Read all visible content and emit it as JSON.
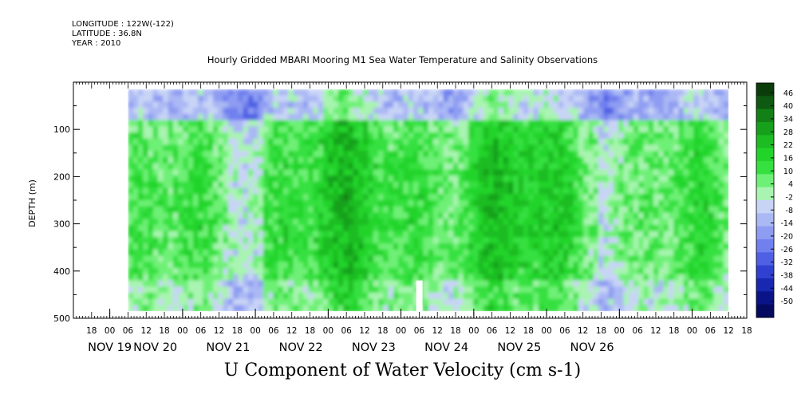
{
  "header": {
    "longitude": "LONGITUDE : 122W(-122)",
    "latitude": "LATITUDE : 36.8N",
    "year": "YEAR : 2010"
  },
  "chart_data": {
    "type": "heatmap",
    "title": "Hourly Gridded MBARI Mooring M1 Sea Water Temperature and Salinity Observations",
    "bottom_title": "U Component of Water Velocity (cm s-1)",
    "ylabel": "DEPTH (m)",
    "ylim": [
      500,
      0
    ],
    "yticks": [
      100,
      200,
      300,
      400,
      500
    ],
    "x_hour_ticks": [
      "18",
      "00",
      "06",
      "12",
      "18",
      "00",
      "06",
      "12",
      "18",
      "00",
      "06",
      "12",
      "18",
      "00",
      "06",
      "12",
      "18",
      "00",
      "06",
      "12",
      "18",
      "00",
      "06",
      "12",
      "18",
      "00",
      "06",
      "12",
      "18",
      "00",
      "06",
      "12",
      "18",
      "00",
      "06",
      "12",
      "18"
    ],
    "date_labels": [
      "NOV 19",
      "NOV 20",
      "NOV 21",
      "NOV 22",
      "NOV 23",
      "NOV 24",
      "NOV 25",
      "NOV 26"
    ],
    "date_label_hour_index": [
      1,
      3.5,
      7.5,
      11.5,
      15.5,
      19.5,
      23.5,
      27.5
    ],
    "data_x_range_hours": [
      6,
      204
    ],
    "axis_x_range_hours": [
      -12,
      210
    ],
    "data_depth_range": [
      15,
      485
    ],
    "colorbar": {
      "labels": [
        "46",
        "40",
        "34",
        "28",
        "22",
        "16",
        "10",
        "4",
        "-2",
        "-8",
        "-14",
        "-20",
        "-26",
        "-32",
        "-38",
        "-44",
        "-50"
      ],
      "colors": [
        "#0a3d0a",
        "#0e5a12",
        "#128016",
        "#16a01c",
        "#1cbc22",
        "#22d42a",
        "#36e040",
        "#6ef076",
        "#a8f4b0",
        "#c8d4f6",
        "#aab8f4",
        "#8e9cf2",
        "#7080ee",
        "#5060e4",
        "#3040d0",
        "#1828b0",
        "#0a1488",
        "#050a60"
      ]
    },
    "field_summary": "U velocity: positive (green) dominates 150-450 m mid-record, negative (blue/purple) near surface and in bands"
  }
}
